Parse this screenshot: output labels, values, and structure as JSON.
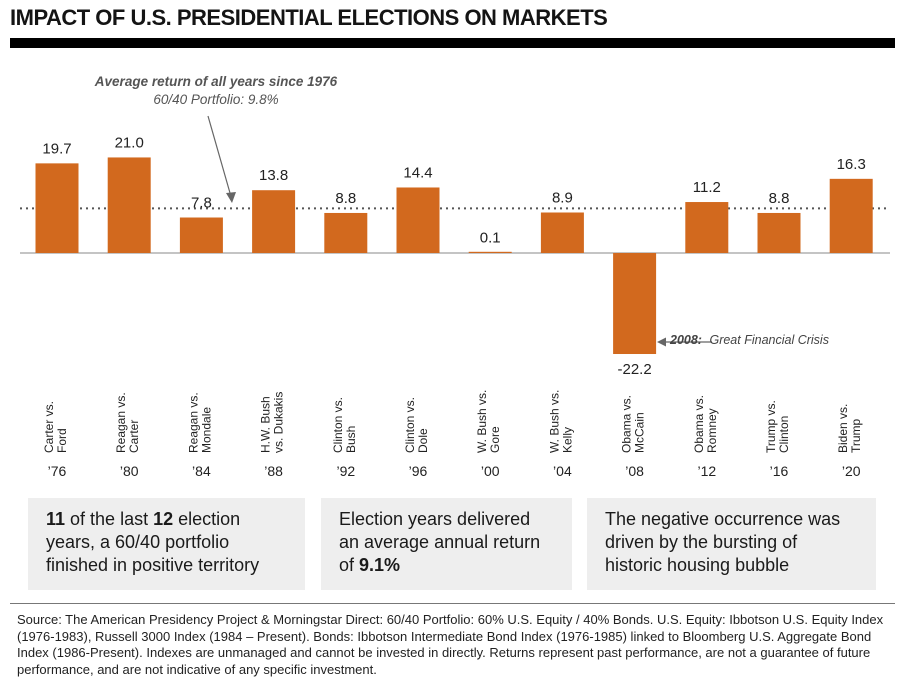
{
  "page": {
    "title": "IMPACT OF U.S. PRESIDENTIAL ELECTIONS ON MARKETS",
    "average_note": {
      "line1": "Average return of all years since 1976",
      "line2": "60/40 Portfolio: 9.8%"
    },
    "annotation": {
      "bold": "2008:",
      "text": "Great Financial Crisis"
    },
    "boxes": [
      {
        "a": "11",
        "b": " of the last ",
        "c": "12",
        "d": " election years, a 60/40 portfolio finished in positive territory"
      },
      {
        "a": "Election years delivered an average annual return of ",
        "b": "9.1%"
      },
      {
        "a": "The negative occurrence was driven by the bursting of historic housing bubble"
      }
    ],
    "source": "Source: The American Presidency Project & Morningstar Direct: 60/40 Portfolio: 60% U.S. Equity / 40% Bonds. U.S. Equity: Ibbotson U.S. Equity Index (1976-1983), Russell 3000 Index (1984 – Present). Bonds: Ibbotson Intermediate Bond Index (1976-1985) linked to Bloomberg U.S. Aggregate Bond Index (1986-Present). Indexes are unmanaged and cannot be invested in directly. Returns represent past performance, are not a guarantee of future performance, and are not indicative of any specific investment."
  },
  "chart_data": {
    "type": "bar",
    "categories": [
      {
        "line1": "Carter vs.",
        "line2": "Ford",
        "year": "’76"
      },
      {
        "line1": "Reagan vs.",
        "line2": "Carter",
        "year": "’80"
      },
      {
        "line1": "Reagan vs.",
        "line2": "Mondale",
        "year": "’84"
      },
      {
        "line1": "H.W. Bush",
        "line2": "vs. Dukakis",
        "year": "’88"
      },
      {
        "line1": "Clinton vs.",
        "line2": "Bush",
        "year": "’92"
      },
      {
        "line1": "Clinton vs.",
        "line2": "Dole",
        "year": "’96"
      },
      {
        "line1": "W. Bush vs.",
        "line2": "Gore",
        "year": "’00"
      },
      {
        "line1": "W. Bush vs.",
        "line2": "Kelly",
        "year": "’04"
      },
      {
        "line1": "Obama vs.",
        "line2": "McCain",
        "year": "’08"
      },
      {
        "line1": "Obama vs.",
        "line2": "Romney",
        "year": "’12"
      },
      {
        "line1": "Trump vs.",
        "line2": "Clinton",
        "year": "’16"
      },
      {
        "line1": "Biden vs.",
        "line2": "Trump",
        "year": "’20"
      }
    ],
    "values": [
      19.7,
      21.0,
      7.8,
      13.8,
      8.8,
      14.4,
      0.1,
      8.9,
      -22.2,
      11.2,
      8.8,
      16.3
    ],
    "value_labels": [
      "19.7",
      "21.0",
      "7.8",
      "13.8",
      "8.8",
      "14.4",
      "0.1",
      "8.9",
      "-22.2",
      "11.2",
      "8.8",
      "16.3"
    ],
    "average_line": 9.8,
    "bar_color": "#d2691e",
    "average_line_color": "#555555",
    "grid": false,
    "legend": "none"
  }
}
